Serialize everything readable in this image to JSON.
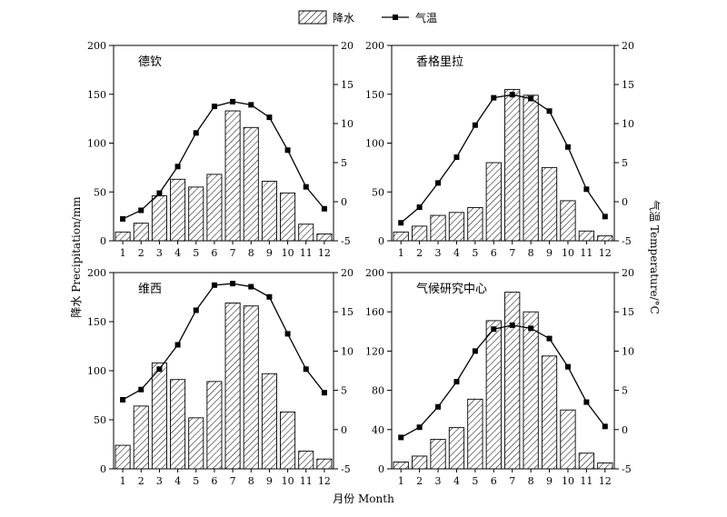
{
  "legend": {
    "precip_label": "降水",
    "temp_label": "气温",
    "placement": "top-center"
  },
  "axis_labels": {
    "x": "月份 Month",
    "y_left": "降水 Precipitation/mm",
    "y_right": "气温 Temperature/°C"
  },
  "colors": {
    "ink": "#000000",
    "bar_fill": "#ffffff",
    "hatch": "#000000",
    "background": "#ffffff"
  },
  "chart_data": [
    {
      "type": "bar+line",
      "title": "德钦",
      "categories": [
        "1",
        "2",
        "3",
        "4",
        "5",
        "6",
        "7",
        "8",
        "9",
        "10",
        "11",
        "12"
      ],
      "series": [
        {
          "name": "降水",
          "axis": "left",
          "values": [
            9,
            18,
            46,
            63,
            55,
            68,
            133,
            116,
            61,
            49,
            17,
            7
          ]
        },
        {
          "name": "气温",
          "axis": "right",
          "values": [
            -2.2,
            -1.1,
            1.1,
            4.5,
            8.8,
            12.2,
            12.8,
            12.4,
            10.8,
            6.6,
            1.9,
            -0.9
          ]
        }
      ],
      "ylim_left": [
        0,
        200
      ],
      "yticks_left": [
        0,
        50,
        100,
        150,
        200
      ],
      "ylim_right": [
        -5,
        20
      ],
      "yticks_right": [
        -5,
        0,
        5,
        10,
        15,
        20
      ],
      "grid": false
    },
    {
      "type": "bar+line",
      "title": "香格里拉",
      "categories": [
        "1",
        "2",
        "3",
        "4",
        "5",
        "6",
        "7",
        "8",
        "9",
        "10",
        "11",
        "12"
      ],
      "series": [
        {
          "name": "降水",
          "axis": "left",
          "values": [
            9,
            15,
            26,
            29,
            34,
            80,
            155,
            149,
            75,
            41,
            10,
            5
          ]
        },
        {
          "name": "气温",
          "axis": "right",
          "values": [
            -2.7,
            -0.7,
            2.4,
            5.7,
            9.8,
            13.3,
            13.7,
            13.2,
            11.6,
            7.0,
            1.6,
            -1.9
          ]
        }
      ],
      "ylim_left": [
        0,
        200
      ],
      "yticks_left": [
        0,
        50,
        100,
        150,
        200
      ],
      "ylim_right": [
        -5,
        20
      ],
      "yticks_right": [
        -5,
        0,
        5,
        10,
        15,
        20
      ],
      "grid": false
    },
    {
      "type": "bar+line",
      "title": "维西",
      "categories": [
        "1",
        "2",
        "3",
        "4",
        "5",
        "6",
        "7",
        "8",
        "9",
        "10",
        "11",
        "12"
      ],
      "series": [
        {
          "name": "降水",
          "axis": "left",
          "values": [
            24,
            64,
            108,
            91,
            52,
            89,
            169,
            166,
            97,
            58,
            18,
            10
          ]
        },
        {
          "name": "气温",
          "axis": "right",
          "values": [
            3.8,
            5.1,
            7.7,
            10.8,
            15.2,
            18.4,
            18.6,
            18.2,
            16.9,
            12.2,
            7.7,
            4.7
          ]
        }
      ],
      "ylim_left": [
        0,
        200
      ],
      "yticks_left": [
        0,
        50,
        100,
        150,
        200
      ],
      "ylim_right": [
        -5,
        20
      ],
      "yticks_right": [
        -5,
        0,
        5,
        10,
        15,
        20
      ],
      "grid": false
    },
    {
      "type": "bar+line",
      "title": "气候研究中心",
      "categories": [
        "1",
        "2",
        "3",
        "4",
        "5",
        "6",
        "7",
        "8",
        "9",
        "10",
        "11",
        "12"
      ],
      "series": [
        {
          "name": "降水",
          "axis": "left",
          "values": [
            7,
            13,
            30,
            42,
            71,
            151,
            180,
            160,
            115,
            60,
            16,
            6
          ]
        },
        {
          "name": "气温",
          "axis": "right",
          "values": [
            -1.0,
            0.3,
            2.9,
            6.1,
            10.0,
            12.8,
            13.3,
            12.9,
            11.6,
            8.0,
            3.5,
            0.4
          ]
        }
      ],
      "ylim_left": [
        0,
        200
      ],
      "yticks_left": [
        0,
        40,
        80,
        120,
        160,
        200
      ],
      "ylim_right": [
        -5,
        20
      ],
      "yticks_right": [
        -5,
        0,
        5,
        10,
        15,
        20
      ],
      "grid": false
    }
  ]
}
